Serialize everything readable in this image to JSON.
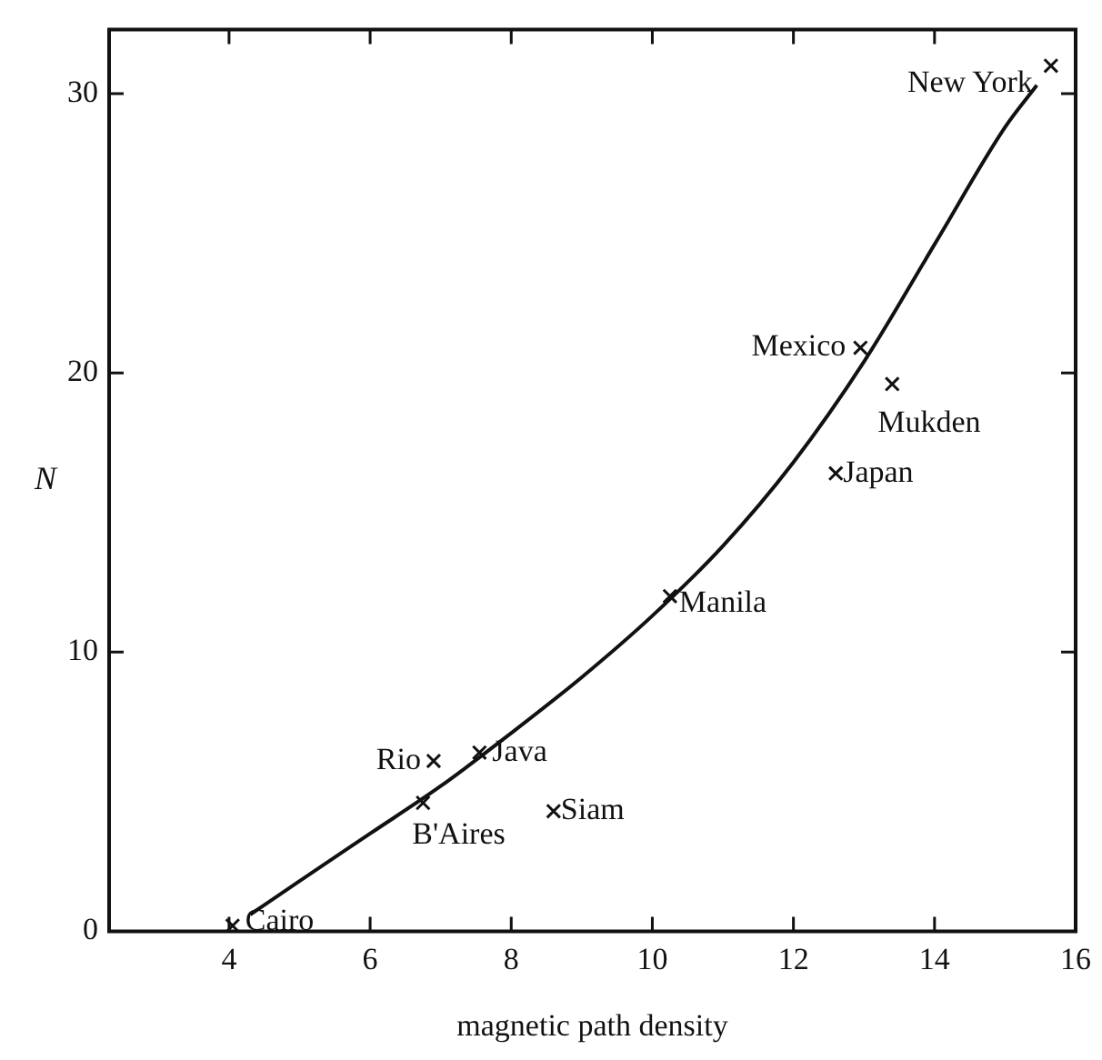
{
  "chart_data": {
    "type": "scatter",
    "xlabel": "magnetic path density",
    "ylabel": "N",
    "series": [
      {
        "color": "#111111",
        "marker": "cross",
        "x": [
          4.05,
          6.9,
          7.55,
          6.75,
          8.6,
          10.25,
          12.95,
          13.4,
          12.6,
          15.65
        ],
        "values": [
          0.2,
          6.1,
          6.4,
          4.6,
          4.3,
          12.0,
          20.9,
          19.6,
          16.4,
          31.0
        ]
      },
      {
        "type": "line",
        "color": "#111111",
        "marker": "none",
        "line_style": "solid",
        "x": [
          4.3,
          5,
          6,
          7,
          8,
          9,
          10,
          11,
          12,
          13,
          14,
          15,
          15.45
        ],
        "values": [
          0.6,
          1.8,
          3.5,
          5.2,
          7.1,
          9.1,
          11.3,
          13.8,
          16.8,
          20.4,
          24.6,
          28.8,
          30.3
        ]
      }
    ],
    "annotations": [
      {
        "text": "Cairo",
        "x": 4.05,
        "y": 0.2
      },
      {
        "text": "Rio",
        "x": 6.9,
        "y": 6.1
      },
      {
        "text": "Java",
        "x": 7.55,
        "y": 6.4
      },
      {
        "text": "B'Aires",
        "x": 6.75,
        "y": 4.6
      },
      {
        "text": "Siam",
        "x": 8.6,
        "y": 4.3
      },
      {
        "text": "Manila",
        "x": 10.25,
        "y": 12.0
      },
      {
        "text": "Mexico",
        "x": 12.95,
        "y": 20.9
      },
      {
        "text": "Mukden",
        "x": 13.4,
        "y": 19.6
      },
      {
        "text": "Japan",
        "x": 12.6,
        "y": 16.4
      },
      {
        "text": "New York",
        "x": 15.65,
        "y": 31.0
      }
    ],
    "xlim": [
      2.3,
      16
    ],
    "xticks": [
      4,
      6,
      8,
      10,
      12,
      14,
      16
    ],
    "ylim": [
      0,
      32.3
    ],
    "yticks": [
      0,
      10,
      20,
      30
    ],
    "grid": false,
    "legend": false
  }
}
